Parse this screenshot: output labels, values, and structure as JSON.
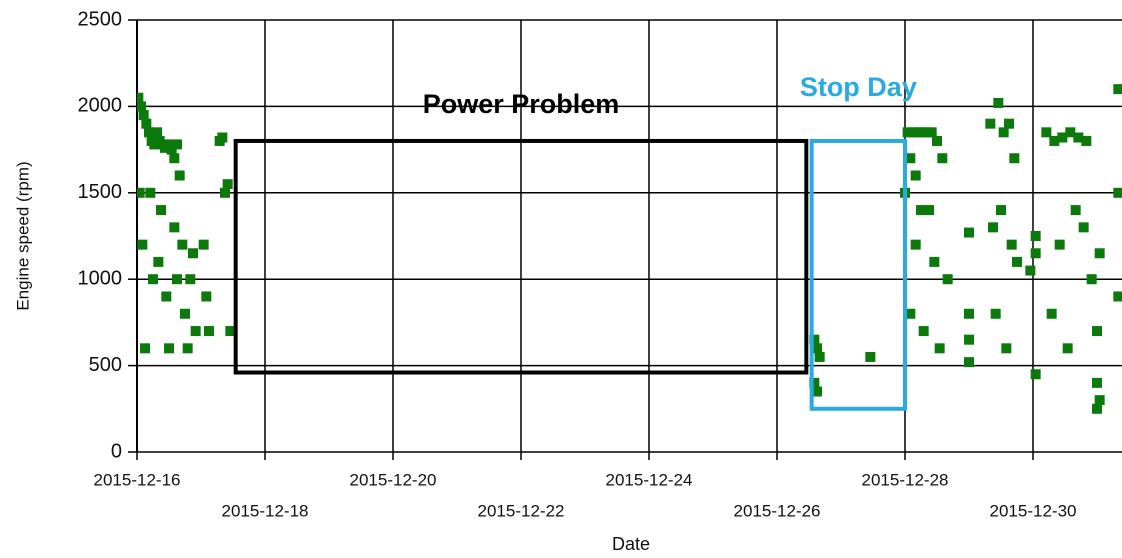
{
  "chart_data": {
    "type": "scatter",
    "y_label": "Engine speed (rpm)",
    "x_label": "Date",
    "xlim": [
      "2015-12-16",
      "2015-12-31T09:00"
    ],
    "xticks": [
      "2015-12-16",
      "2015-12-18",
      "2015-12-20",
      "2015-12-22",
      "2015-12-24",
      "2015-12-26",
      "2015-12-28",
      "2015-12-30"
    ],
    "ylim": [
      0,
      2500
    ],
    "yticks": [
      0,
      500,
      1000,
      1500,
      2000,
      2500
    ],
    "grid": true,
    "series": [
      {
        "name": "Engine speed",
        "color": "#0b7a0b",
        "x": [
          "2015-12-16T00:30",
          "2015-12-16T01:30",
          "2015-12-16T02:30",
          "2015-12-16T03:30",
          "2015-12-16T04:30",
          "2015-12-16T05:30",
          "2015-12-16T06:30",
          "2015-12-16T07:30",
          "2015-12-16T08:30",
          "2015-12-16T09:30",
          "2015-12-16T10:30",
          "2015-12-16T12:00",
          "2015-12-16T13:00",
          "2015-12-16T14:00",
          "2015-12-16T15:00",
          "2015-12-16T16:00",
          "2015-12-16T17:00",
          "2015-12-16T18:00",
          "2015-12-16T19:00",
          "2015-12-16T20:00",
          "2015-12-16T21:00",
          "2015-12-16T22:00",
          "2015-12-16T03:00",
          "2015-12-16T06:00",
          "2015-12-16T09:00",
          "2015-12-16T12:00",
          "2015-12-16T15:00",
          "2015-12-16T02:00",
          "2015-12-16T08:00",
          "2015-12-16T11:00",
          "2015-12-16T01:00",
          "2015-12-16T05:00",
          "2015-12-16T14:00",
          "2015-12-17T01:00",
          "2015-12-17T02:00",
          "2015-12-17T03:00",
          "2015-12-17T07:00",
          "2015-12-17T08:00",
          "2015-12-17T09:00",
          "2015-12-17T10:00",
          "2015-12-17T11:00",
          "2015-12-26T14:00",
          "2015-12-26T15:00",
          "2015-12-26T16:00",
          "2015-12-26T14:00",
          "2015-12-26T15:00",
          "2015-12-27T11:00",
          "2015-12-28T00:00",
          "2015-12-28T01:00",
          "2015-12-28T02:00",
          "2015-12-28T03:00",
          "2015-12-28T04:00",
          "2015-12-28T05:00",
          "2015-12-28T06:00",
          "2015-12-28T08:00",
          "2015-12-28T10:00",
          "2015-12-28T12:00",
          "2015-12-28T14:00",
          "2015-12-28T16:00",
          "2015-12-28T02:00",
          "2015-12-28T04:00",
          "2015-12-28T07:00",
          "2015-12-28T11:00",
          "2015-12-28T13:00",
          "2015-12-28T06:00",
          "2015-12-28T09:00",
          "2015-12-29T00:00",
          "2015-12-29T00:00",
          "2015-12-29T00:00",
          "2015-12-29T00:00",
          "2015-12-29T08:00",
          "2015-12-29T11:00",
          "2015-12-29T13:00",
          "2015-12-29T15:00",
          "2015-12-29T17:00",
          "2015-12-29T18:00",
          "2015-12-29T10:00",
          "2015-12-29T14:00",
          "2015-12-29T09:00",
          "2015-12-29T12:00",
          "2015-12-29T16:00",
          "2015-12-29T23:00",
          "2015-12-30T01:00",
          "2015-12-30T01:00",
          "2015-12-30T01:00",
          "2015-12-30T05:00",
          "2015-12-30T08:00",
          "2015-12-30T11:00",
          "2015-12-30T14:00",
          "2015-12-30T17:00",
          "2015-12-30T20:00",
          "2015-12-30T07:00",
          "2015-12-30T13:00",
          "2015-12-30T19:00",
          "2015-12-30T10:00",
          "2015-12-30T16:00",
          "2015-12-30T22:00",
          "2015-12-31T00:00",
          "2015-12-31T01:00",
          "2015-12-31T00:00",
          "2015-12-31T01:00",
          "2015-12-31T00:00",
          "2015-12-31T08:00",
          "2015-12-31T08:00",
          "2015-12-31T08:00"
        ],
        "values": [
          2050,
          2000,
          1950,
          1900,
          1850,
          1800,
          1780,
          1850,
          1800,
          1780,
          1760,
          1780,
          1750,
          1700,
          1780,
          1600,
          1200,
          800,
          600,
          1000,
          1150,
          700,
          600,
          1000,
          1400,
          600,
          1000,
          1200,
          1100,
          900,
          1500,
          1500,
          1300,
          1200,
          900,
          700,
          1800,
          1820,
          1500,
          1550,
          700,
          650,
          600,
          550,
          400,
          350,
          550,
          1500,
          1850,
          1700,
          1850,
          1600,
          1850,
          1850,
          1850,
          1850,
          1800,
          1700,
          1000,
          800,
          1200,
          700,
          1100,
          600,
          1400,
          1400,
          1270,
          800,
          650,
          520,
          1900,
          2020,
          1850,
          1900,
          1700,
          1100,
          800,
          600,
          1300,
          1400,
          1200,
          1050,
          1250,
          1150,
          450,
          1850,
          1800,
          1820,
          1850,
          1820,
          1800,
          800,
          600,
          1300,
          1200,
          1400,
          1000,
          700,
          1150,
          400,
          300,
          250,
          2100,
          1500,
          900
        ]
      }
    ],
    "annotations": [
      {
        "text": "Power Problem",
        "x": [
          "2015-12-17T13:00",
          "2015-12-26T11:00"
        ],
        "y": [
          460,
          1800
        ],
        "color": "#000000"
      },
      {
        "text": "Stop Day",
        "x": [
          "2015-12-26T13:00",
          "2015-12-28"
        ],
        "y": [
          250,
          1800
        ],
        "color": "#29abe2"
      }
    ]
  }
}
